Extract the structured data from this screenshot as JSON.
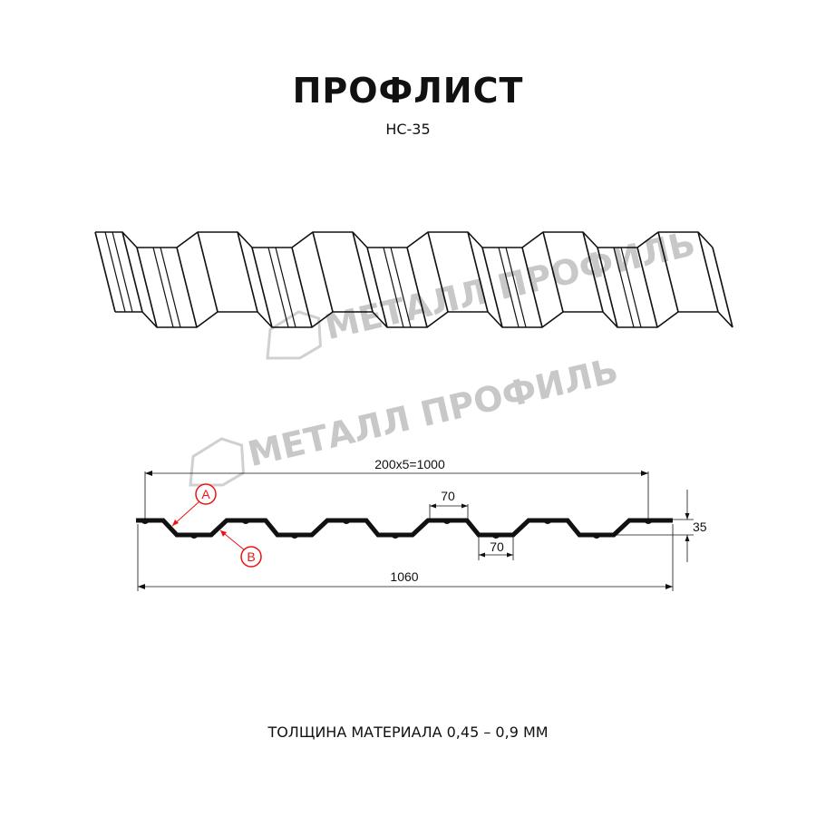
{
  "title": "ПРОФЛИСТ",
  "subtitle": "НС-35",
  "footer": "ТОЛЩИНА МАТЕРИАЛА 0,45 – 0,9 ММ",
  "watermark": "МЕТАЛЛ ПРОФИЛЬ",
  "dimensions": {
    "useful_width": "200x5=1000",
    "total_width": "1060",
    "height": "35",
    "top_flat": "70",
    "bottom_flat": "70"
  },
  "markers": {
    "a": "A",
    "b": "B"
  },
  "colors": {
    "line": "#111111",
    "marker": "#e11111",
    "watermark": "#c8c8c8"
  }
}
